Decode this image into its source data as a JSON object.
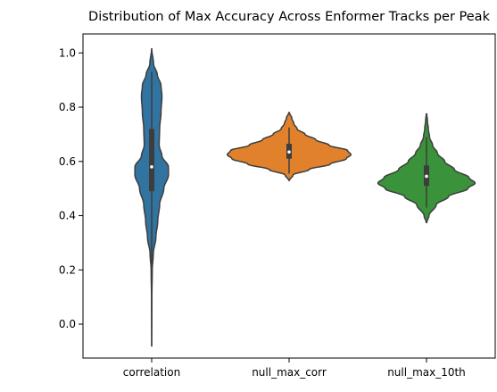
{
  "chart_data": {
    "type": "violin",
    "title": "Distribution of Max Accuracy Across Enformer Tracks per Peak",
    "xlabel": "",
    "ylabel": "",
    "categories": [
      "correlation",
      "null_max_corr",
      "null_max_10th"
    ],
    "ylim": [
      -0.125,
      1.07
    ],
    "yticks": [
      0.0,
      0.2,
      0.4,
      0.6,
      0.8,
      1.0
    ],
    "yticklabels": [
      "0.0",
      "0.2",
      "0.4",
      "0.6",
      "0.8",
      "1.0"
    ],
    "grid": false,
    "series": [
      {
        "category": "correlation",
        "color": "#3274a1",
        "min": -0.08,
        "max": 1.015,
        "q1": 0.49,
        "median": 0.58,
        "q3": 0.72,
        "whisker_low": 0.2,
        "whisker_high": 0.93,
        "density": [
          [
            -0.08,
            0.002
          ],
          [
            0.1,
            0.004
          ],
          [
            0.2,
            0.012
          ],
          [
            0.26,
            0.035
          ],
          [
            0.32,
            0.09
          ],
          [
            0.38,
            0.13
          ],
          [
            0.44,
            0.17
          ],
          [
            0.5,
            0.26
          ],
          [
            0.55,
            0.36
          ],
          [
            0.58,
            0.36
          ],
          [
            0.62,
            0.22
          ],
          [
            0.66,
            0.16
          ],
          [
            0.72,
            0.17
          ],
          [
            0.78,
            0.2
          ],
          [
            0.84,
            0.22
          ],
          [
            0.88,
            0.2
          ],
          [
            0.92,
            0.12
          ],
          [
            0.96,
            0.04
          ],
          [
            1.015,
            0.002
          ]
        ]
      },
      {
        "category": "null_max_corr",
        "color": "#e1812c",
        "min": 0.53,
        "max": 0.78,
        "q1": 0.61,
        "median": 0.635,
        "q3": 0.665,
        "whisker_low": 0.555,
        "whisker_high": 0.725,
        "density": [
          [
            0.53,
            0.005
          ],
          [
            0.55,
            0.06
          ],
          [
            0.57,
            0.3
          ],
          [
            0.59,
            0.62
          ],
          [
            0.61,
            0.86
          ],
          [
            0.625,
            0.93
          ],
          [
            0.64,
            0.88
          ],
          [
            0.66,
            0.6
          ],
          [
            0.68,
            0.4
          ],
          [
            0.7,
            0.24
          ],
          [
            0.72,
            0.12
          ],
          [
            0.74,
            0.07
          ],
          [
            0.76,
            0.04
          ],
          [
            0.78,
            0.005
          ]
        ]
      },
      {
        "category": "null_max_10th",
        "color": "#3a923a",
        "min": 0.375,
        "max": 0.775,
        "q1": 0.51,
        "median": 0.545,
        "q3": 0.585,
        "whisker_low": 0.43,
        "whisker_high": 0.69,
        "density": [
          [
            0.375,
            0.005
          ],
          [
            0.4,
            0.04
          ],
          [
            0.44,
            0.16
          ],
          [
            0.47,
            0.36
          ],
          [
            0.5,
            0.68
          ],
          [
            0.52,
            0.8
          ],
          [
            0.54,
            0.7
          ],
          [
            0.57,
            0.46
          ],
          [
            0.6,
            0.3
          ],
          [
            0.63,
            0.18
          ],
          [
            0.66,
            0.1
          ],
          [
            0.69,
            0.05
          ],
          [
            0.72,
            0.03
          ],
          [
            0.75,
            0.015
          ],
          [
            0.775,
            0.004
          ]
        ]
      }
    ]
  }
}
